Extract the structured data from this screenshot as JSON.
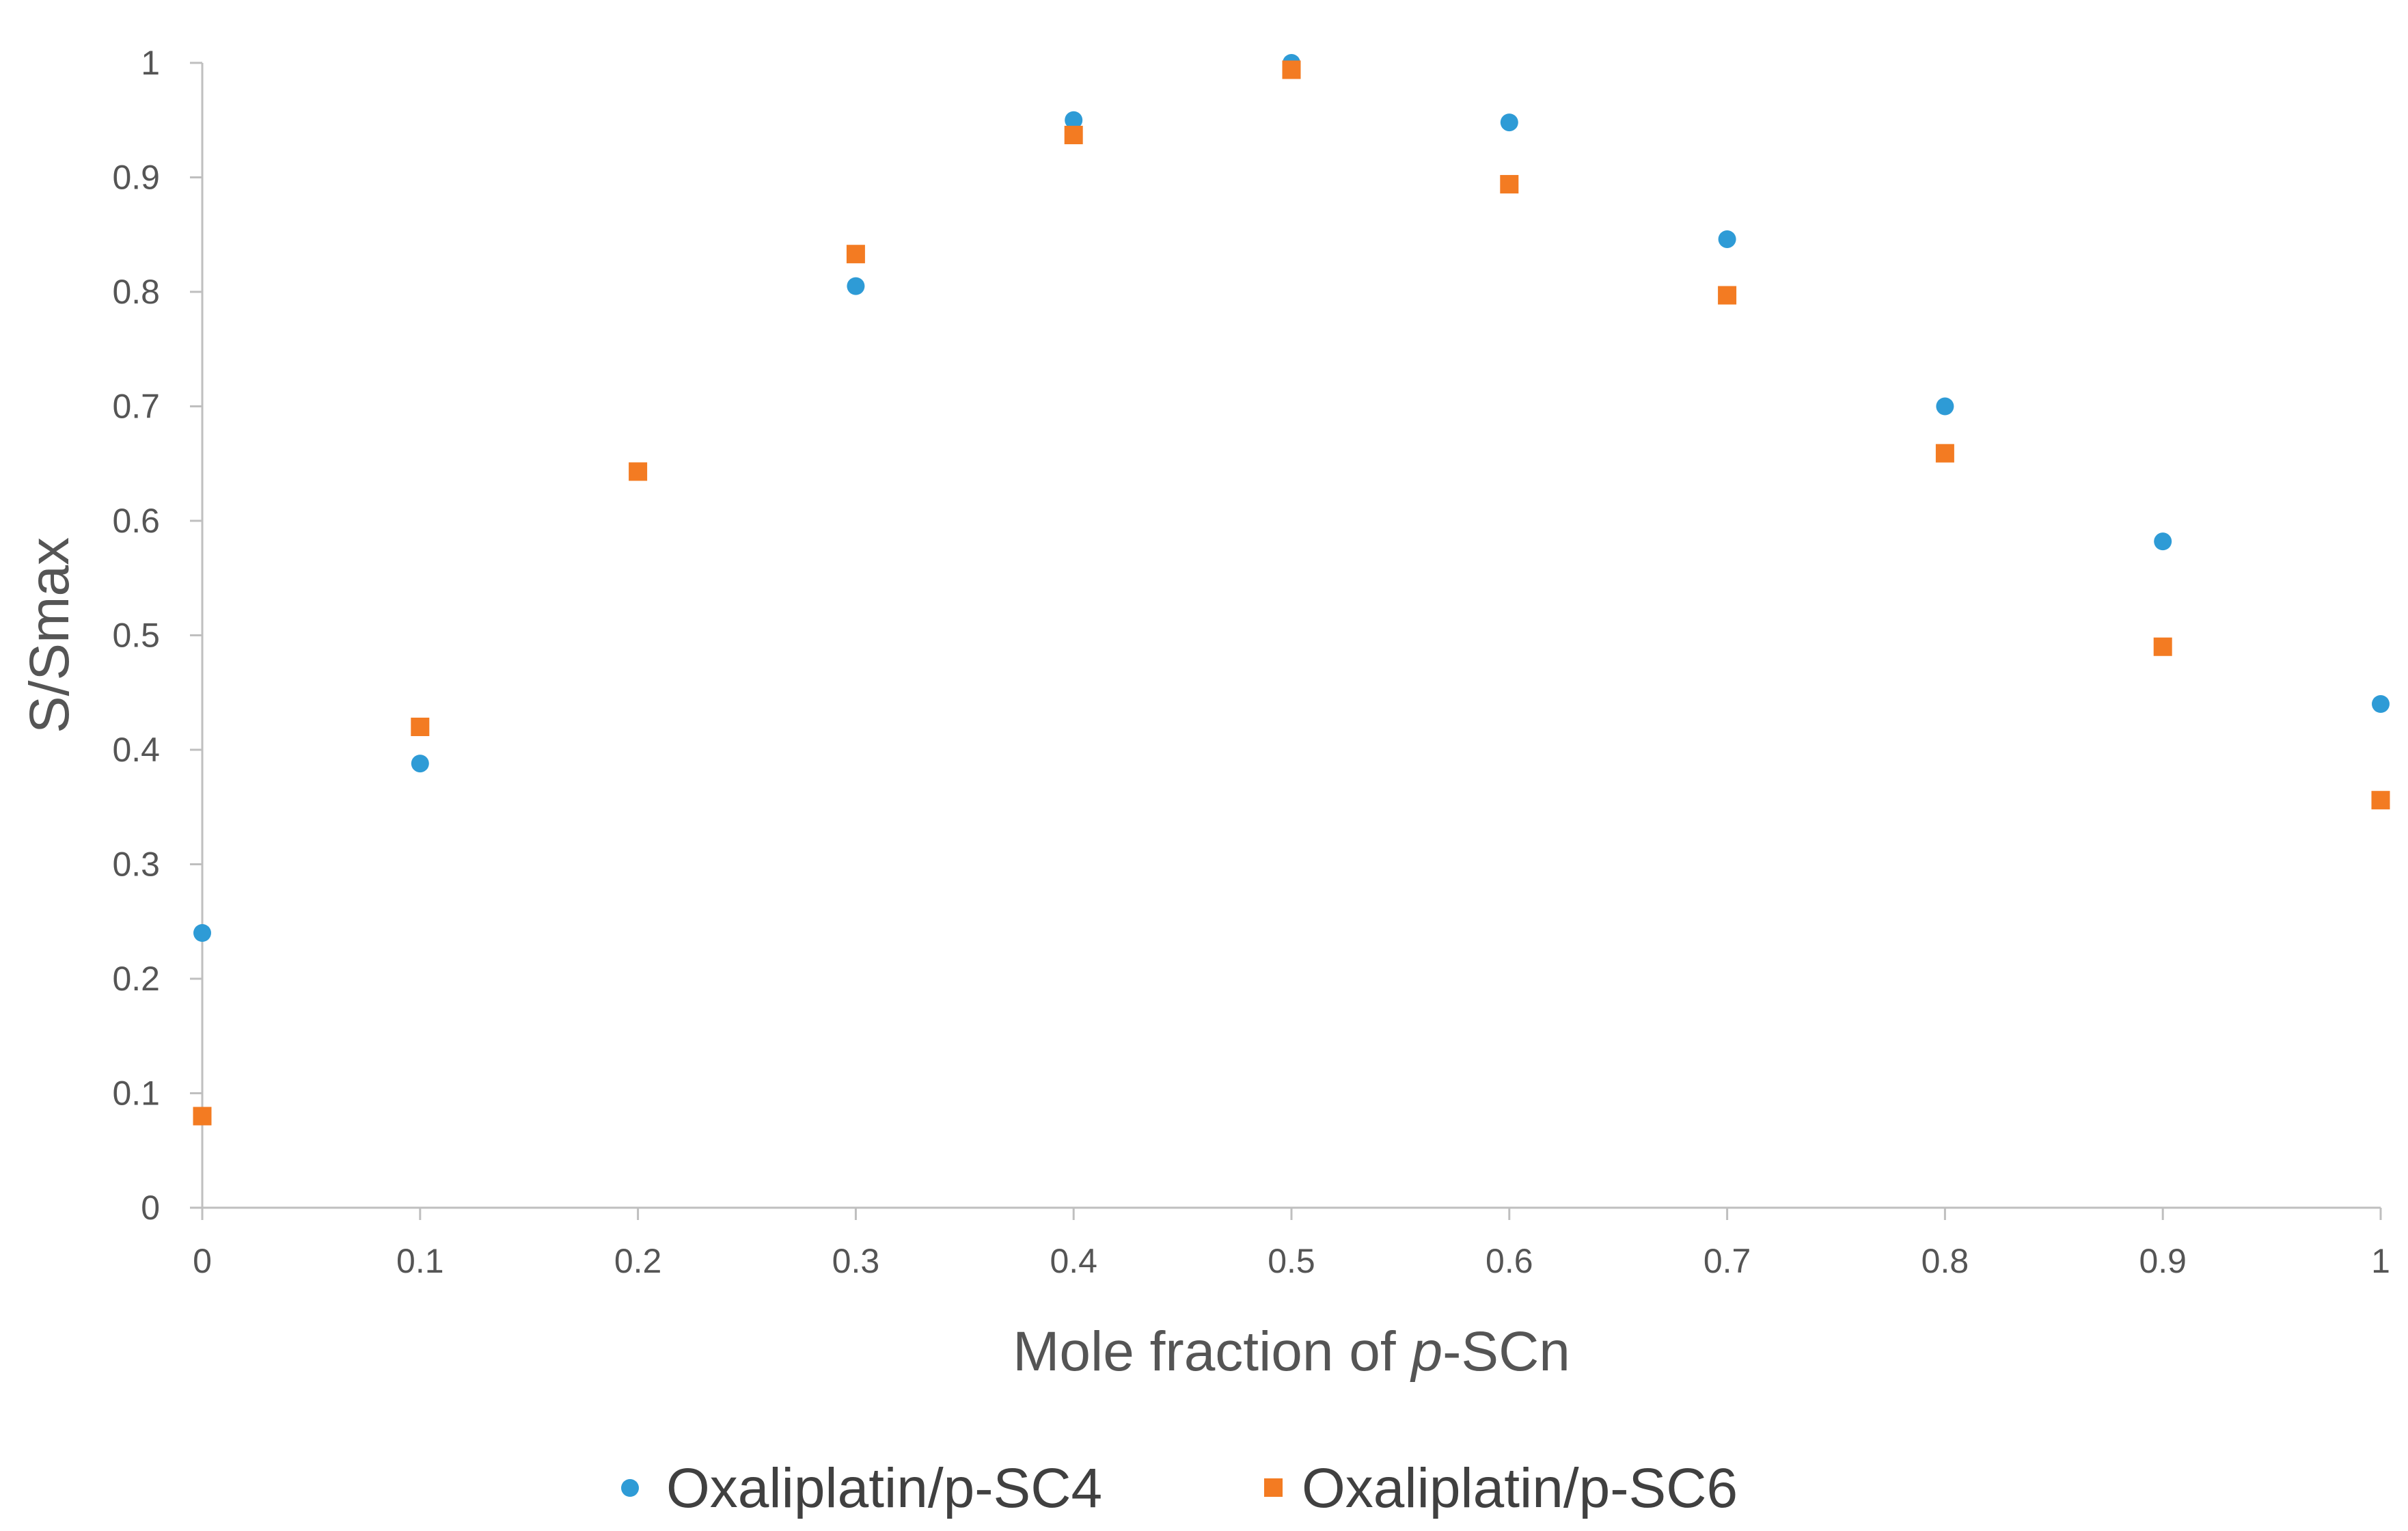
{
  "chart_data": {
    "type": "scatter",
    "title": "",
    "xlabel": "Mole fraction of ",
    "xlabel_italic": "p",
    "xlabel_suffix": "-SCn",
    "ylabel": "S/Smax",
    "xlim": [
      0,
      1
    ],
    "ylim": [
      0,
      1
    ],
    "x_ticks": [
      "0",
      "0.1",
      "0.2",
      "0.3",
      "0.4",
      "0.5",
      "0.6",
      "0.7",
      "0.8",
      "0.9",
      "1"
    ],
    "y_ticks": [
      "0",
      "0.1",
      "0.2",
      "0.3",
      "0.4",
      "0.5",
      "0.6",
      "0.7",
      "0.8",
      "0.9",
      "1"
    ],
    "grid": false,
    "legend_position": "bottom",
    "series": [
      {
        "name": "Oxaliplatin/p-SC4",
        "marker": "circle",
        "color": "#2E9BD6",
        "points": [
          {
            "x": 0,
            "y": 0.24
          },
          {
            "x": 0.1,
            "y": 0.388
          },
          {
            "x": 0.3,
            "y": 0.805
          },
          {
            "x": 0.4,
            "y": 0.95
          },
          {
            "x": 0.5,
            "y": 1.0
          },
          {
            "x": 0.6,
            "y": 0.948
          },
          {
            "x": 0.7,
            "y": 0.846
          },
          {
            "x": 0.8,
            "y": 0.7
          },
          {
            "x": 0.9,
            "y": 0.582
          },
          {
            "x": 1,
            "y": 0.44
          }
        ]
      },
      {
        "name": "Oxaliplatin/p-SC6",
        "marker": "square",
        "color": "#F37B22",
        "points": [
          {
            "x": 0,
            "y": 0.08
          },
          {
            "x": 0.1,
            "y": 0.42
          },
          {
            "x": 0.2,
            "y": 0.643
          },
          {
            "x": 0.3,
            "y": 0.833
          },
          {
            "x": 0.4,
            "y": 0.937
          },
          {
            "x": 0.5,
            "y": 0.994
          },
          {
            "x": 0.6,
            "y": 0.894
          },
          {
            "x": 0.7,
            "y": 0.797
          },
          {
            "x": 0.8,
            "y": 0.659
          },
          {
            "x": 0.9,
            "y": 0.49
          },
          {
            "x": 1,
            "y": 0.356
          }
        ]
      }
    ]
  }
}
